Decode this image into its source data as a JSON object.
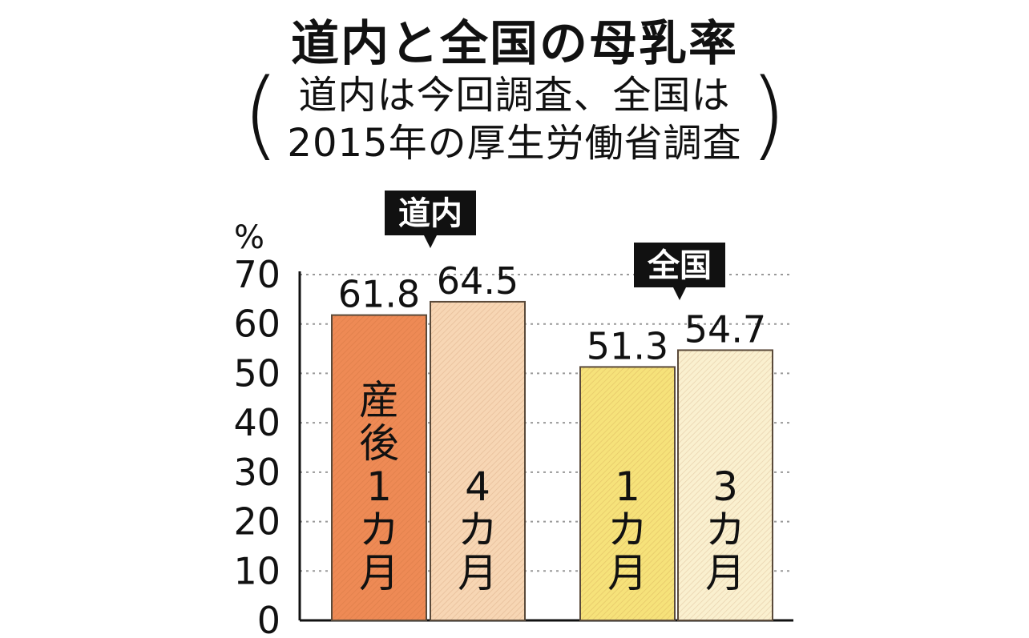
{
  "chart_data": {
    "type": "bar",
    "title": "道内と全国の母乳率",
    "subtitle_lines": [
      "道内は今回調査、全国は",
      "2015年の厚生労働省調査"
    ],
    "ylabel": "%",
    "ylim": [
      0,
      70
    ],
    "yticks": [
      "0",
      "10",
      "20",
      "30",
      "40",
      "50",
      "60",
      "70"
    ],
    "grid": true,
    "groups": [
      {
        "name": "道内",
        "bars": [
          {
            "label": "産後1カ月",
            "value": 61.8,
            "value_label": "61.8",
            "color": "#ee8a55"
          },
          {
            "label": "4カ月",
            "value": 64.5,
            "value_label": "64.5",
            "color": "#f7d6b4"
          }
        ]
      },
      {
        "name": "全国",
        "bars": [
          {
            "label": "1カ月",
            "value": 51.3,
            "value_label": "51.3",
            "color": "#f6e27a"
          },
          {
            "label": "3カ月",
            "value": 54.7,
            "value_label": "54.7",
            "color": "#faf0cf"
          }
        ]
      }
    ]
  }
}
